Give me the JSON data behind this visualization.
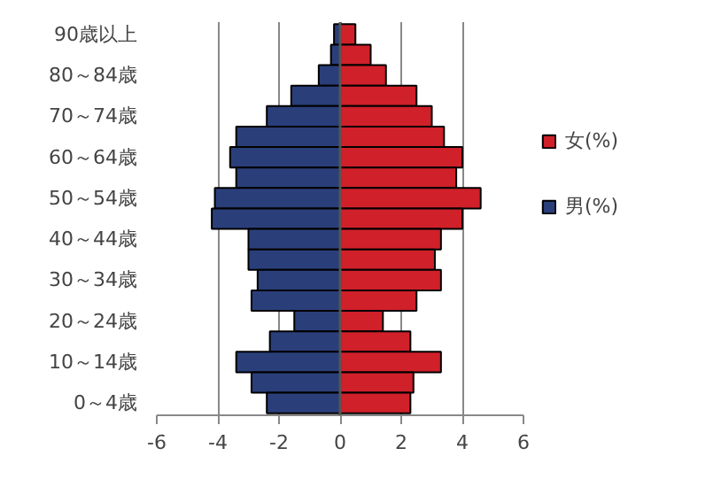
{
  "chart_data": {
    "type": "bar",
    "orientation": "horizontal",
    "categories": [
      "90歳以上",
      null,
      "80～84歳",
      null,
      "70～74歳",
      null,
      "60～64歳",
      null,
      "50～54歳",
      null,
      "40～44歳",
      null,
      "30～34歳",
      null,
      "20～24歳",
      null,
      "10～14歳",
      null,
      "0～4歳"
    ],
    "series": [
      {
        "name": "女(%)",
        "color": "#d0202a",
        "values": [
          0.5,
          1.0,
          1.5,
          2.5,
          3.0,
          3.4,
          4.0,
          3.8,
          4.6,
          4.0,
          3.3,
          3.1,
          3.3,
          2.5,
          1.4,
          2.3,
          3.3,
          2.4,
          2.3
        ]
      },
      {
        "name": "男(%)",
        "color": "#2a3f7a",
        "values": [
          -0.2,
          -0.3,
          -0.7,
          -1.6,
          -2.4,
          -3.4,
          -3.6,
          -3.4,
          -4.1,
          -4.2,
          -3.0,
          -3.0,
          -2.7,
          -2.9,
          -1.5,
          -2.3,
          -3.4,
          -2.9,
          -2.4
        ]
      }
    ],
    "stacked": true,
    "xlim": [
      -6,
      6
    ],
    "xticks": [
      -6,
      -4,
      -2,
      0,
      2,
      4,
      6
    ],
    "grid": "x",
    "legend": "right"
  }
}
